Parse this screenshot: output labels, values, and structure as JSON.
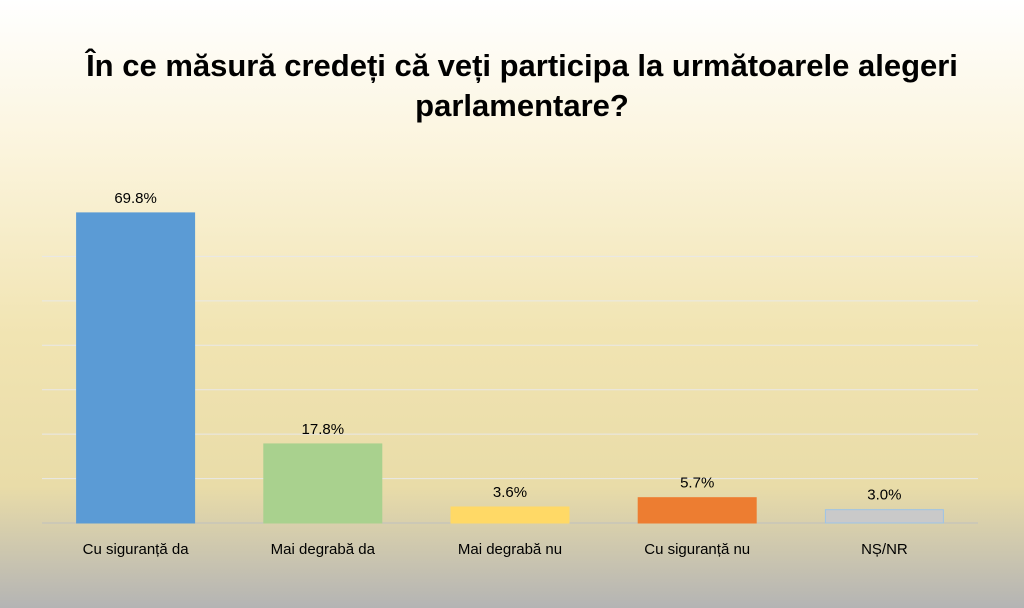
{
  "chart_data": {
    "type": "bar",
    "title": "În ce măsură credeți că veți participa la următoarele alegeri parlamentare?",
    "categories": [
      "Cu siguranță da",
      "Mai degrabă da",
      "Mai degrabă nu",
      "Cu siguranță nu",
      "NȘ/NR"
    ],
    "values": [
      69.8,
      17.8,
      3.6,
      5.7,
      3.0
    ],
    "value_labels": [
      "69.8%",
      "17.8%",
      "3.6%",
      "5.7%",
      "3.0%"
    ],
    "colors": [
      "#5b9bd5",
      "#a9d18e",
      "#ffd966",
      "#ed7d31",
      "#c9c9c9"
    ],
    "ylim": [
      0,
      70
    ],
    "yticks": [
      0,
      10,
      20,
      30,
      40,
      50,
      60
    ],
    "grid": true
  }
}
